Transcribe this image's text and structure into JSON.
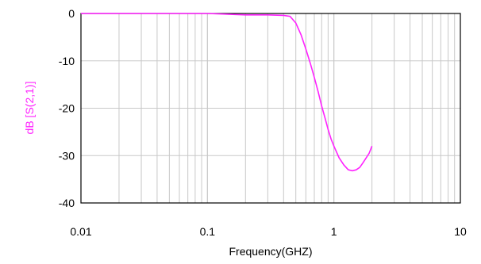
{
  "chart_data": {
    "type": "line",
    "title": "",
    "xlabel": "Frequency(GHZ)",
    "ylabel": "dB [S(2,1)]",
    "x_scale": "log",
    "xlim": [
      0.01,
      10
    ],
    "ylim": [
      -40,
      0
    ],
    "grid": true,
    "legend": "none",
    "x_ticks": [
      "0.01",
      "0.1",
      "1",
      "10"
    ],
    "y_ticks": [
      "0",
      "-10",
      "-20",
      "-30",
      "-40"
    ],
    "colors": {
      "series": "#ff22ff",
      "ylabel": "#ff22ff",
      "grid": "#c8c8c8",
      "frame": "#000000"
    },
    "series": [
      {
        "x": [
          0.01,
          0.1,
          0.2,
          0.3,
          0.4,
          0.45,
          0.5,
          0.55,
          0.6,
          0.65,
          0.7,
          0.75,
          0.8,
          0.85,
          0.9,
          0.95,
          1.0,
          1.1,
          1.2,
          1.3,
          1.4,
          1.5,
          1.6,
          1.7,
          1.8,
          1.9,
          2.0
        ],
        "y": [
          0,
          0,
          -0.3,
          -0.3,
          -0.4,
          -0.6,
          -2,
          -4.5,
          -7.5,
          -10.5,
          -13.5,
          -16.5,
          -19.5,
          -22,
          -24.5,
          -26.5,
          -28,
          -30.5,
          -32,
          -33,
          -33.2,
          -33,
          -32.5,
          -31.5,
          -30.5,
          -29.5,
          -28
        ]
      }
    ]
  }
}
